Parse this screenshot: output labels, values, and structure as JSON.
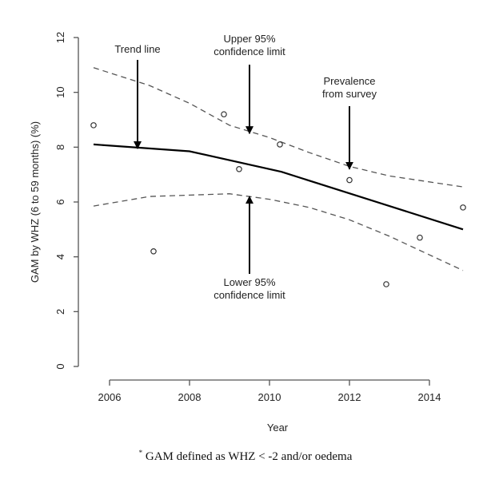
{
  "chart_data": {
    "type": "line",
    "title": "",
    "xlabel": "Year",
    "ylabel": "GAM by WHZ (6 to 59 months) (%)",
    "xlim": [
      2005.6,
      2014.84
    ],
    "ylim": [
      0,
      12
    ],
    "x_ticks": [
      2006,
      2008,
      2010,
      2012,
      2014
    ],
    "y_ticks": [
      0,
      2,
      4,
      6,
      8,
      10,
      12
    ],
    "grid": false,
    "legend": "none",
    "series": [
      {
        "name": "Trend line",
        "style": "solid",
        "x": [
          2005.6,
          2008.0,
          2010.3,
          2014.84
        ],
        "y": [
          8.1,
          7.85,
          7.1,
          5.0
        ]
      },
      {
        "name": "Upper 95% confidence limit",
        "style": "dashed",
        "x": [
          2005.6,
          2007.0,
          2008.0,
          2009.0,
          2010.0,
          2011.0,
          2012.0,
          2013.0,
          2014.84
        ],
        "y": [
          10.9,
          10.25,
          9.6,
          8.8,
          8.35,
          7.8,
          7.3,
          6.95,
          6.55
        ]
      },
      {
        "name": "Lower 95% confidence limit",
        "style": "dashed",
        "x": [
          2005.6,
          2007.0,
          2008.0,
          2009.0,
          2010.0,
          2011.0,
          2012.0,
          2013.0,
          2014.84
        ],
        "y": [
          5.85,
          6.2,
          6.25,
          6.3,
          6.1,
          5.8,
          5.35,
          4.75,
          3.5
        ]
      },
      {
        "name": "Prevalence from survey",
        "style": "points",
        "x": [
          2005.6,
          2007.1,
          2008.86,
          2009.24,
          2010.26,
          2012.0,
          2012.92,
          2013.76,
          2014.84
        ],
        "y": [
          8.8,
          4.2,
          9.2,
          7.2,
          8.1,
          6.8,
          3.0,
          4.7,
          5.8
        ]
      }
    ],
    "annotations": [
      {
        "lines": [
          "Trend line"
        ],
        "arrow_to": [
          2006.7,
          7.95
        ],
        "direction": "down"
      },
      {
        "lines": [
          "Upper 95%",
          "confidence limit"
        ],
        "arrow_to": [
          2009.5,
          8.5
        ],
        "direction": "down"
      },
      {
        "lines": [
          "Prevalence",
          "from survey"
        ],
        "arrow_to": [
          2012.0,
          7.2
        ],
        "direction": "down"
      },
      {
        "lines": [
          "Lower 95%",
          "confidence limit"
        ],
        "arrow_to": [
          2009.5,
          6.2
        ],
        "direction": "up"
      }
    ],
    "footnote": {
      "marker": "*",
      "text": "GAM defined as WHZ < -2 and/or oedema"
    }
  }
}
